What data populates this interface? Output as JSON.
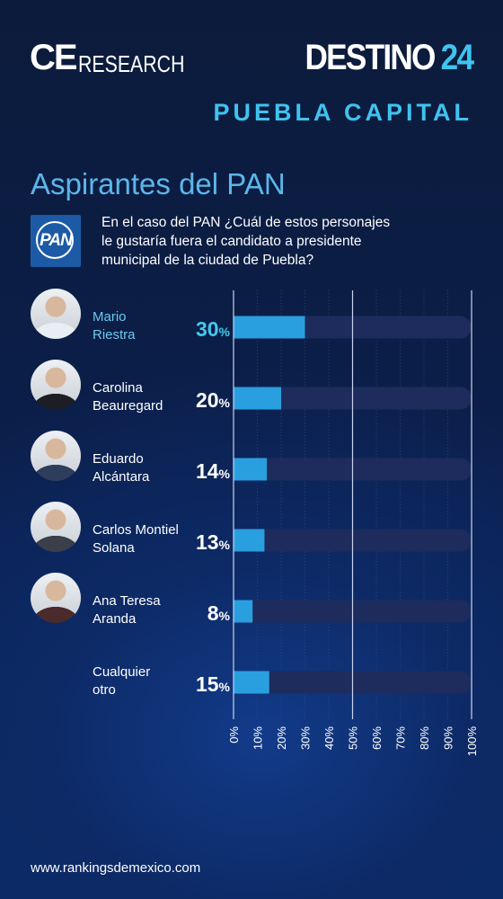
{
  "header": {
    "brand_ce": "CE",
    "brand_research": "RESEARCH",
    "destino_word": "DESTINO",
    "destino_number": "24",
    "subtitle": "PUEBLA CAPITAL"
  },
  "section_title": "Aspirantes del PAN",
  "logo_text": "PAN",
  "question": "En el caso del PAN ¿Cuál de estos personajes le gustaría fuera el candidato a presidente municipal de la ciudad de Puebla?",
  "footer_url": "www.rankingsdemexico.com",
  "colors": {
    "bar_fill": "#2a9fdf",
    "bar_track": "#1d2c5c",
    "highlight": "#43c9ee"
  },
  "chart_data": {
    "type": "bar",
    "orientation": "horizontal",
    "categories": [
      "Mario Riestra",
      "Carolina Beauregard",
      "Eduardo Alcántara",
      "Carlos Montiel Solana",
      "Ana Teresa Aranda",
      "Cualquier otro"
    ],
    "category_lines": [
      [
        "Mario",
        "Riestra"
      ],
      [
        "Carolina",
        "Beauregard"
      ],
      [
        "Eduardo",
        "Alcántara"
      ],
      [
        "Carlos Montiel",
        "Solana"
      ],
      [
        "Ana Teresa",
        "Aranda"
      ],
      [
        "Cualquier",
        "otro"
      ]
    ],
    "values": [
      30,
      20,
      14,
      13,
      8,
      15
    ],
    "value_labels": [
      "30",
      "20",
      "14",
      "13",
      "8",
      "15"
    ],
    "value_unit": "%",
    "highlight_index": 0,
    "has_photo": [
      true,
      true,
      true,
      true,
      true,
      false
    ],
    "xlim": [
      0,
      100
    ],
    "ticks": [
      0,
      10,
      20,
      30,
      40,
      50,
      60,
      70,
      80,
      90,
      100
    ],
    "tick_labels": [
      "0%",
      "10%",
      "20%",
      "30%",
      "40%",
      "50%",
      "60%",
      "70%",
      "80%",
      "90%",
      "100%"
    ],
    "reference_lines": [
      0,
      50,
      100
    ]
  }
}
